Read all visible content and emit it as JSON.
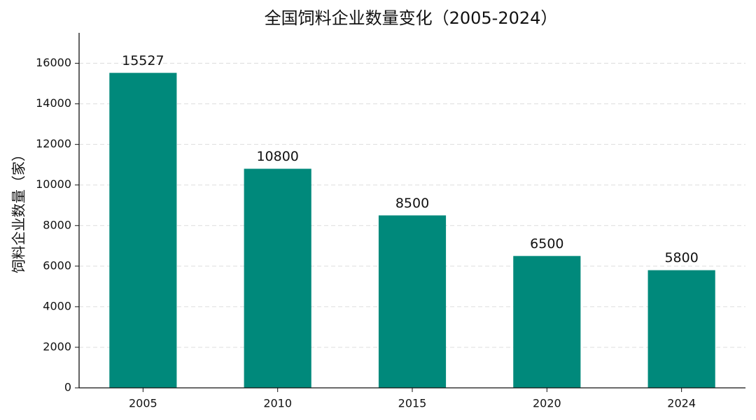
{
  "chart_data": {
    "type": "bar",
    "title": "全国饲料企业数量变化（2005-2024）",
    "y_label": "饲料企业数量（家）",
    "categories": [
      "2005",
      "2010",
      "2015",
      "2020",
      "2024"
    ],
    "values": [
      15527,
      10800,
      8500,
      6500,
      5800
    ],
    "color": "#00897b",
    "ylim": [
      0,
      17500
    ],
    "yticks": [
      0,
      2000,
      4000,
      6000,
      8000,
      10000,
      12000,
      14000,
      16000
    ],
    "grid": true
  }
}
